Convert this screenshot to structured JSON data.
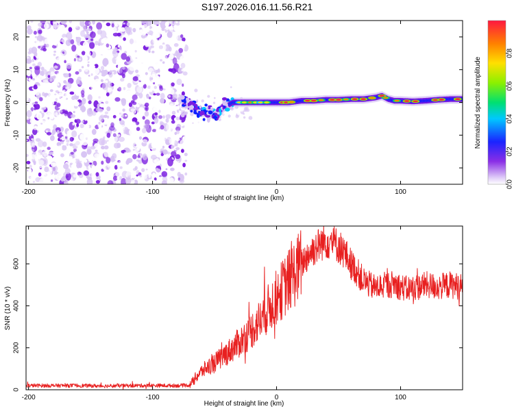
{
  "title": "S197.2026.016.11.56.R21",
  "chart_data": [
    {
      "type": "heatmap",
      "name": "spectrogram",
      "xlabel": "Height of straight line (km)",
      "ylabel": "Frequency (Hz)",
      "xlim": [
        -202,
        150
      ],
      "ylim": [
        -25,
        25
      ],
      "x_ticks": [
        -200,
        -100,
        0,
        100
      ],
      "y_ticks": [
        -20,
        -10,
        0,
        10,
        20
      ],
      "colorbar": {
        "label": "Normalized spectral amplitude",
        "range": [
          0,
          1
        ],
        "ticks": [
          "0.0",
          "0.2",
          "0.4",
          "0.6",
          "0.8"
        ],
        "tick_values": [
          0.0,
          0.2,
          0.4,
          0.6,
          0.8
        ],
        "colors": [
          "#ffffff",
          "#d8c4f4",
          "#7a1ce0",
          "#1020ff",
          "#00c8ff",
          "#00e070",
          "#8cf000",
          "#ffe000",
          "#ff8000",
          "#ff1840"
        ]
      },
      "noise_region": {
        "x_range": [
          -202,
          -73
        ],
        "y_range": [
          -25,
          25
        ],
        "amplitude_range": [
          0.0,
          0.25
        ]
      },
      "ridge": {
        "x": [
          -75,
          -70,
          -65,
          -60,
          -55,
          -50,
          -45,
          -40,
          -35,
          -30,
          -20,
          -10,
          0,
          10,
          20,
          30,
          40,
          50,
          60,
          70,
          80,
          85,
          90,
          95,
          100,
          110,
          120,
          130,
          140,
          150
        ],
        "freq": [
          0,
          -1,
          -2,
          -3,
          -3,
          -4,
          -2,
          -1,
          0,
          0,
          0,
          0,
          0,
          0,
          0.5,
          0.5,
          0.8,
          0.8,
          1.0,
          1.0,
          1.5,
          2.0,
          1.0,
          0.5,
          0.5,
          0.3,
          0.5,
          0.8,
          1.0,
          1.0
        ]
      }
    },
    {
      "type": "line",
      "name": "snr",
      "xlabel": "Height of straight line (km)",
      "ylabel": "SNR (10 * v/v)",
      "xlim": [
        -202,
        150
      ],
      "ylim": [
        0,
        780
      ],
      "x_ticks": [
        -200,
        -100,
        0,
        100
      ],
      "y_ticks": [
        0,
        200,
        400,
        600
      ],
      "color": "#e82020",
      "series": [
        {
          "name": "SNR",
          "x": [
            -202,
            -180,
            -160,
            -140,
            -120,
            -100,
            -80,
            -70,
            -65,
            -60,
            -55,
            -50,
            -45,
            -40,
            -35,
            -30,
            -25,
            -20,
            -15,
            -10,
            -5,
            0,
            5,
            10,
            15,
            20,
            25,
            30,
            35,
            40,
            45,
            50,
            55,
            60,
            65,
            70,
            75,
            80,
            85,
            90,
            95,
            100,
            105,
            110,
            115,
            120,
            125,
            130,
            135,
            140,
            145,
            150
          ],
          "y": [
            20,
            20,
            20,
            18,
            20,
            20,
            20,
            22,
            60,
            90,
            110,
            130,
            150,
            175,
            200,
            225,
            255,
            285,
            320,
            360,
            400,
            440,
            480,
            520,
            560,
            600,
            640,
            670,
            695,
            710,
            705,
            685,
            650,
            600,
            560,
            520,
            500,
            485,
            495,
            500,
            505,
            490,
            480,
            485,
            490,
            500,
            495,
            490,
            495,
            500,
            495,
            490
          ]
        }
      ]
    }
  ]
}
